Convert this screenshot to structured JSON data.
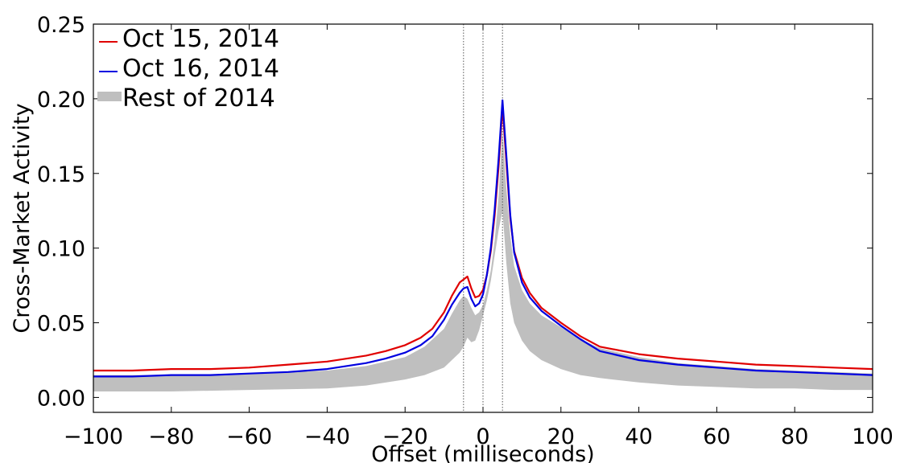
{
  "chart_data": {
    "type": "line",
    "xlabel": "Offset (milliseconds)",
    "ylabel": "Cross-Market Activity",
    "xlim": [
      -100,
      100
    ],
    "ylim": [
      -0.01,
      0.25
    ],
    "x_ticks": [
      -100,
      -80,
      -60,
      -40,
      -20,
      0,
      20,
      40,
      60,
      80,
      100
    ],
    "x_tick_labels": [
      "−100",
      "−80",
      "−60",
      "−40",
      "−20",
      "0",
      "20",
      "40",
      "60",
      "80",
      "100"
    ],
    "y_ticks": [
      0.0,
      0.05,
      0.1,
      0.15,
      0.2,
      0.25
    ],
    "y_tick_labels": [
      "0.00",
      "0.05",
      "0.10",
      "0.15",
      "0.20",
      "0.25"
    ],
    "vlines": [
      -5,
      0,
      5
    ],
    "grid": false,
    "legend_position": "top-left",
    "series": [
      {
        "name": "Oct 15, 2014",
        "color": "#e00000",
        "style": "line",
        "points": [
          [
            -100,
            0.018
          ],
          [
            -90,
            0.018
          ],
          [
            -80,
            0.019
          ],
          [
            -70,
            0.019
          ],
          [
            -60,
            0.02
          ],
          [
            -50,
            0.022
          ],
          [
            -40,
            0.024
          ],
          [
            -30,
            0.028
          ],
          [
            -25,
            0.031
          ],
          [
            -20,
            0.035
          ],
          [
            -16,
            0.04
          ],
          [
            -13,
            0.046
          ],
          [
            -10,
            0.057
          ],
          [
            -8,
            0.068
          ],
          [
            -6,
            0.077
          ],
          [
            -5,
            0.079
          ],
          [
            -4,
            0.081
          ],
          [
            -3,
            0.073
          ],
          [
            -2,
            0.067
          ],
          [
            -1,
            0.068
          ],
          [
            0,
            0.072
          ],
          [
            1,
            0.082
          ],
          [
            2,
            0.098
          ],
          [
            3,
            0.122
          ],
          [
            4,
            0.155
          ],
          [
            5,
            0.195
          ],
          [
            6,
            0.158
          ],
          [
            7,
            0.12
          ],
          [
            8,
            0.098
          ],
          [
            10,
            0.08
          ],
          [
            12,
            0.07
          ],
          [
            15,
            0.06
          ],
          [
            20,
            0.05
          ],
          [
            25,
            0.041
          ],
          [
            30,
            0.034
          ],
          [
            40,
            0.029
          ],
          [
            50,
            0.026
          ],
          [
            60,
            0.024
          ],
          [
            70,
            0.022
          ],
          [
            80,
            0.021
          ],
          [
            90,
            0.02
          ],
          [
            100,
            0.019
          ]
        ]
      },
      {
        "name": "Oct 16, 2014",
        "color": "#0000e0",
        "style": "line",
        "points": [
          [
            -100,
            0.014
          ],
          [
            -90,
            0.014
          ],
          [
            -80,
            0.015
          ],
          [
            -70,
            0.015
          ],
          [
            -60,
            0.016
          ],
          [
            -50,
            0.017
          ],
          [
            -40,
            0.019
          ],
          [
            -30,
            0.023
          ],
          [
            -25,
            0.026
          ],
          [
            -20,
            0.03
          ],
          [
            -16,
            0.035
          ],
          [
            -13,
            0.041
          ],
          [
            -10,
            0.052
          ],
          [
            -8,
            0.062
          ],
          [
            -6,
            0.07
          ],
          [
            -5,
            0.073
          ],
          [
            -4,
            0.074
          ],
          [
            -3,
            0.066
          ],
          [
            -2,
            0.061
          ],
          [
            -1,
            0.063
          ],
          [
            0,
            0.069
          ],
          [
            1,
            0.082
          ],
          [
            2,
            0.1
          ],
          [
            3,
            0.126
          ],
          [
            4,
            0.16
          ],
          [
            5,
            0.199
          ],
          [
            6,
            0.162
          ],
          [
            7,
            0.122
          ],
          [
            8,
            0.097
          ],
          [
            10,
            0.077
          ],
          [
            12,
            0.067
          ],
          [
            15,
            0.058
          ],
          [
            20,
            0.048
          ],
          [
            25,
            0.039
          ],
          [
            30,
            0.031
          ],
          [
            40,
            0.025
          ],
          [
            50,
            0.022
          ],
          [
            60,
            0.02
          ],
          [
            70,
            0.018
          ],
          [
            80,
            0.017
          ],
          [
            90,
            0.016
          ],
          [
            100,
            0.015
          ]
        ]
      },
      {
        "name": "Rest of 2014",
        "color": "#bfbfbf",
        "style": "band",
        "points_upper": [
          [
            -100,
            0.015
          ],
          [
            -80,
            0.015
          ],
          [
            -60,
            0.016
          ],
          [
            -40,
            0.018
          ],
          [
            -30,
            0.021
          ],
          [
            -20,
            0.027
          ],
          [
            -15,
            0.034
          ],
          [
            -10,
            0.046
          ],
          [
            -8,
            0.056
          ],
          [
            -6,
            0.065
          ],
          [
            -5,
            0.068
          ],
          [
            -4,
            0.066
          ],
          [
            -3,
            0.06
          ],
          [
            -2,
            0.055
          ],
          [
            -1,
            0.057
          ],
          [
            0,
            0.062
          ],
          [
            1,
            0.072
          ],
          [
            2,
            0.085
          ],
          [
            3,
            0.105
          ],
          [
            4,
            0.135
          ],
          [
            5,
            0.18
          ],
          [
            6,
            0.14
          ],
          [
            7,
            0.108
          ],
          [
            8,
            0.088
          ],
          [
            10,
            0.072
          ],
          [
            12,
            0.063
          ],
          [
            15,
            0.055
          ],
          [
            20,
            0.047
          ],
          [
            25,
            0.039
          ],
          [
            30,
            0.033
          ],
          [
            40,
            0.027
          ],
          [
            50,
            0.023
          ],
          [
            60,
            0.021
          ],
          [
            70,
            0.019
          ],
          [
            80,
            0.018
          ],
          [
            90,
            0.017
          ],
          [
            100,
            0.016
          ]
        ],
        "points_lower": [
          [
            -100,
            0.004
          ],
          [
            -80,
            0.004
          ],
          [
            -60,
            0.005
          ],
          [
            -40,
            0.006
          ],
          [
            -30,
            0.008
          ],
          [
            -20,
            0.012
          ],
          [
            -15,
            0.015
          ],
          [
            -10,
            0.02
          ],
          [
            -8,
            0.025
          ],
          [
            -6,
            0.03
          ],
          [
            -5,
            0.034
          ],
          [
            -4,
            0.04
          ],
          [
            -3,
            0.037
          ],
          [
            -2,
            0.038
          ],
          [
            -1,
            0.045
          ],
          [
            0,
            0.055
          ],
          [
            1,
            0.065
          ],
          [
            2,
            0.078
          ],
          [
            3,
            0.095
          ],
          [
            4,
            0.112
          ],
          [
            5,
            0.125
          ],
          [
            6,
            0.09
          ],
          [
            7,
            0.063
          ],
          [
            8,
            0.05
          ],
          [
            10,
            0.038
          ],
          [
            12,
            0.031
          ],
          [
            15,
            0.025
          ],
          [
            20,
            0.019
          ],
          [
            25,
            0.015
          ],
          [
            30,
            0.013
          ],
          [
            40,
            0.01
          ],
          [
            50,
            0.008
          ],
          [
            60,
            0.007
          ],
          [
            70,
            0.006
          ],
          [
            80,
            0.006
          ],
          [
            90,
            0.005
          ],
          [
            100,
            0.005
          ]
        ]
      }
    ]
  }
}
